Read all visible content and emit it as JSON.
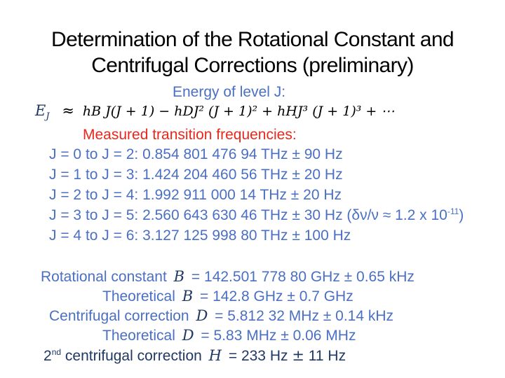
{
  "title": {
    "line1": "Determination of the Rotational Constant and",
    "line2": "Centrifugal Corrections (preliminary)"
  },
  "energy": {
    "heading": "Energy of level J:",
    "lhs": "E",
    "lhs_sub": "J",
    "approx": "≈",
    "equation": "hB J(J + 1) − hDJ² (J + 1)² + hHJ³ (J + 1)³ + ⋯"
  },
  "transitions": {
    "heading": "Measured transition frequencies:",
    "rows": [
      "J = 0 to J = 2: 0.854 801 476 94 THz ± 90 Hz",
      "J = 1 to J = 3: 1.424 204 460 56 THz ± 20 Hz",
      "J = 2 to J = 4: 1.992 911 000 14 THz ± 20 Hz",
      "J = 3 to J = 5: 2.560 643 630 46 THz ± 30 Hz (δν/ν ≈ 1.2 x 10",
      "J = 4 to J = 6: 3.127 125 998 80 THz ± 100 Hz"
    ],
    "row4_exponent": "-11",
    "row4_tail": ")"
  },
  "constants": {
    "B_label": "Rotational constant",
    "B_sym": "B",
    "B_value": "= 142.501 778 80 GHz ± 0.65 kHz",
    "B_theory_label": "Theoretical",
    "B_theory_value": "= 142.8 GHz ± 0.7 GHz",
    "D_label": "Centrifugal correction",
    "D_sym": "D",
    "D_value": "= 5.812 32 MHz ± 0.14 kHz",
    "D_theory_label": "Theoretical",
    "D_theory_value": "= 5.83 MHz ± 0.06 MHz",
    "H_prefix": "2",
    "H_sup": "nd",
    "H_label": "centrifugal correction",
    "H_sym": "H",
    "H_value_a": "= 233 Hz",
    "H_pm": "±",
    "H_value_b": "11 Hz"
  },
  "colors": {
    "blue": "#4a6fc3",
    "red": "#e8281c",
    "dark": "#1f3864"
  }
}
